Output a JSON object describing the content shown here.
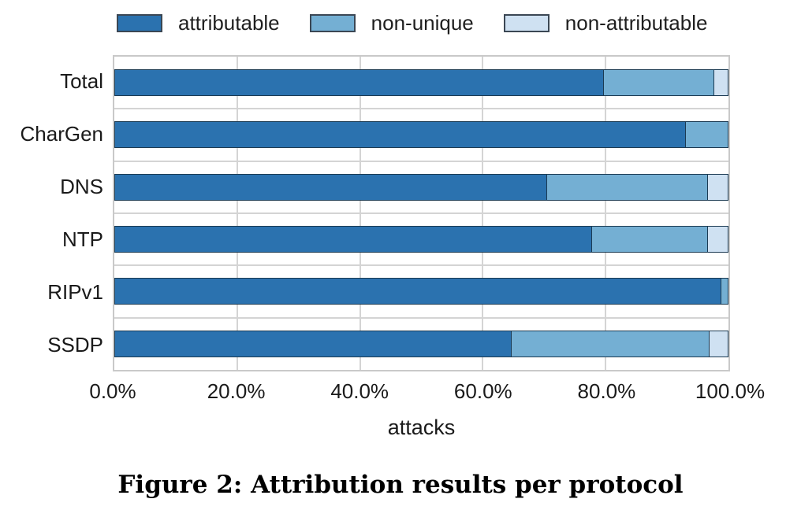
{
  "chart_data": {
    "type": "bar",
    "orientation": "horizontal_stacked",
    "caption": "Figure 2: Attribution results per protocol",
    "xlabel": "attacks",
    "categories": [
      "Total",
      "CharGen",
      "DNS",
      "NTP",
      "RIPv1",
      "SSDP"
    ],
    "series": [
      {
        "name": "attributable",
        "color": "#2b72af",
        "values": [
          79.6,
          92.9,
          70.3,
          77.6,
          98.7,
          64.6
        ]
      },
      {
        "name": "non-unique",
        "color": "#74afd3",
        "values": [
          17.9,
          7.1,
          26.2,
          18.9,
          1.3,
          32.2
        ]
      },
      {
        "name": "non-attributable",
        "color": "#cfe1f2",
        "values": [
          2.5,
          0.0,
          3.5,
          3.5,
          0.0,
          3.2
        ]
      }
    ],
    "x_ticks": [
      "0.0%",
      "20.0%",
      "40.0%",
      "60.0%",
      "80.0%",
      "100.0%"
    ],
    "xlim": [
      0,
      100
    ],
    "grid": true,
    "legend_position": "top",
    "style_colors": {
      "bar_edge": "#1b3a52",
      "grid_line": "#d4d4d4",
      "plot_border": "#c9c9c9",
      "swatch_border": "#3b4754",
      "text": "#1a1a1a"
    }
  }
}
